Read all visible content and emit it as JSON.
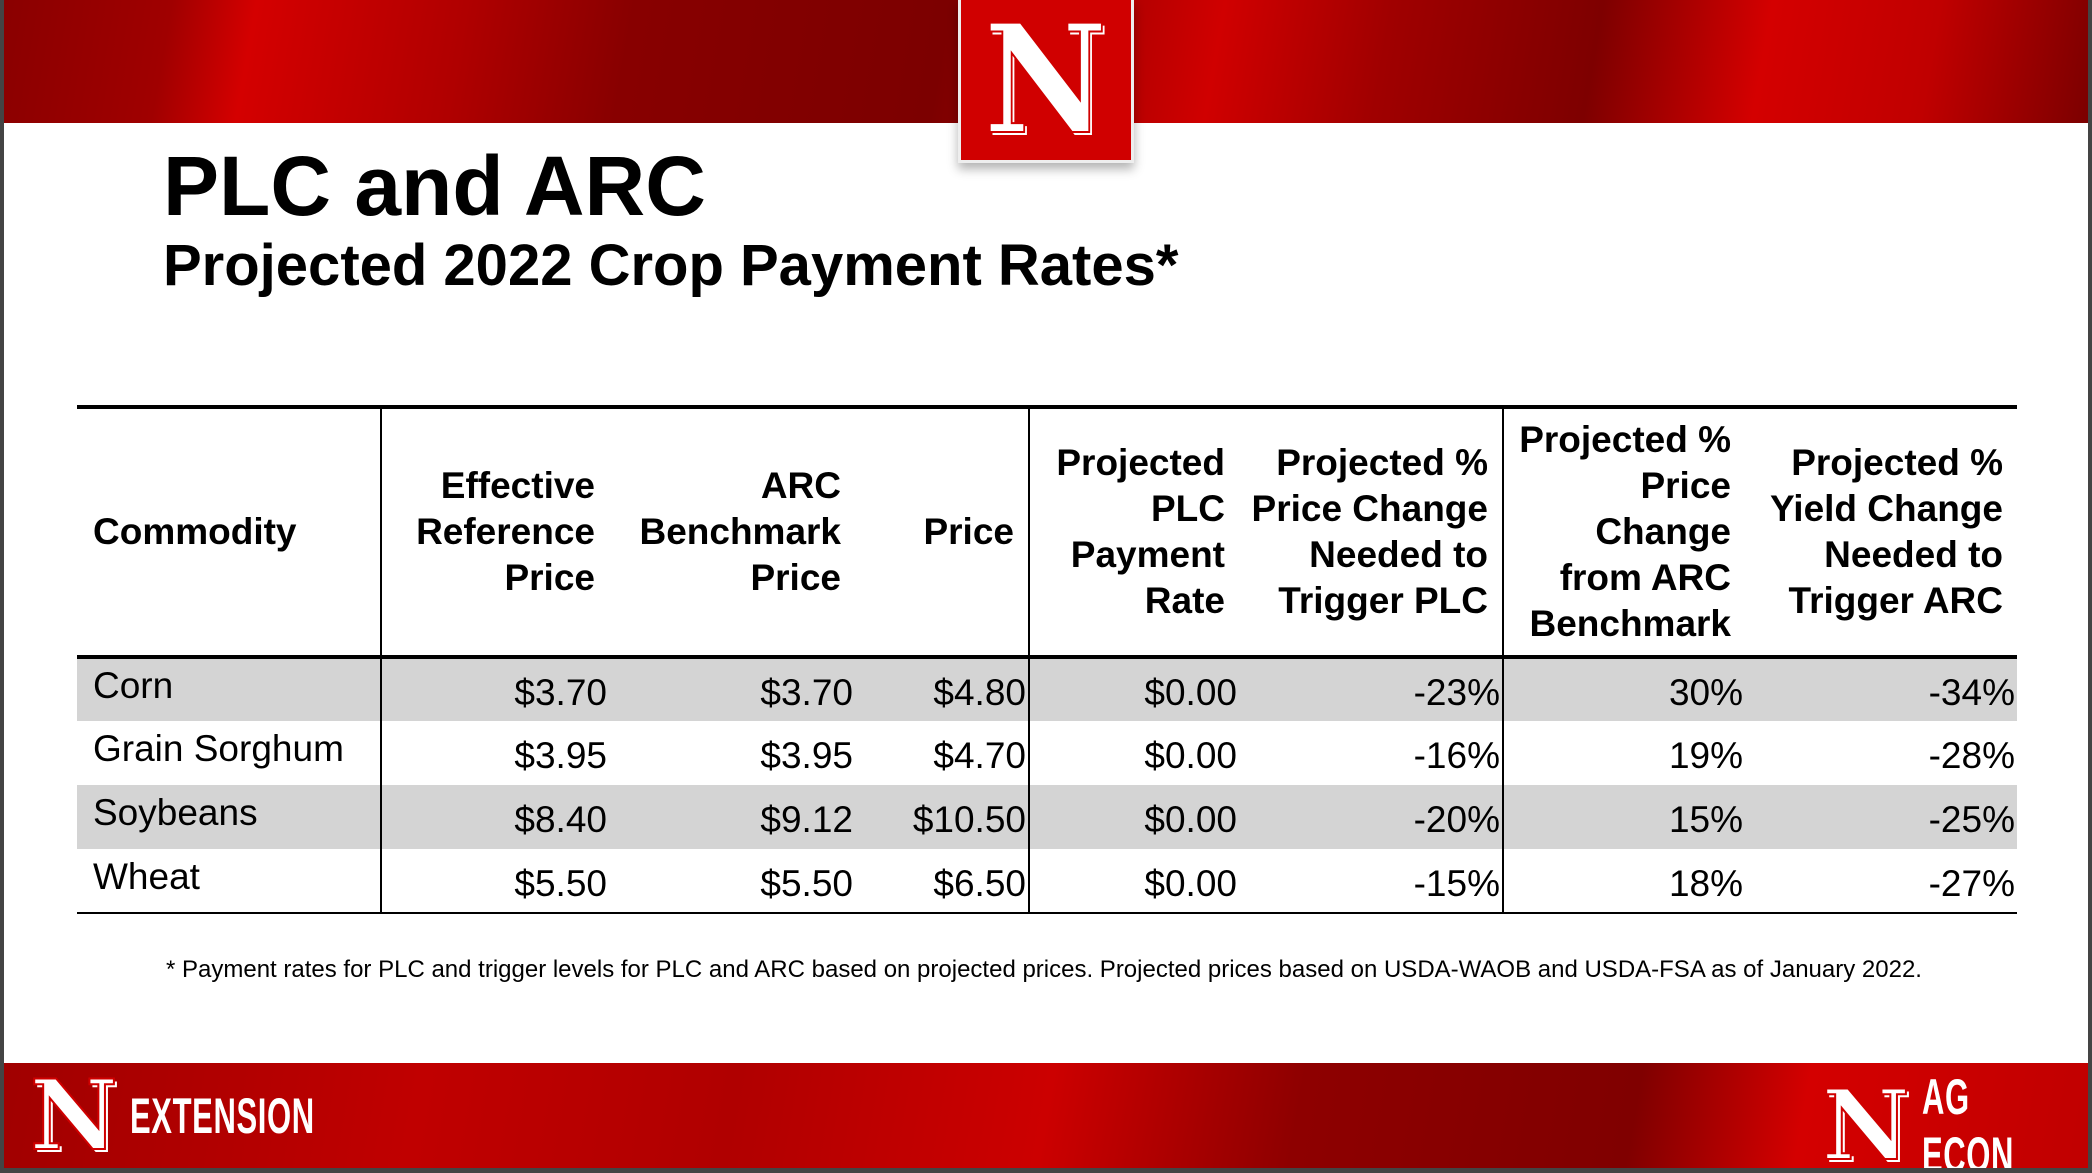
{
  "title": "PLC and ARC",
  "subtitle": "Projected 2022 Crop Payment Rates*",
  "logo": "N",
  "table": {
    "headers": [
      "Commodity",
      "Effective Reference Price",
      "ARC Benchmark Price",
      "Price",
      "Projected PLC Payment Rate",
      "Projected % Price Change Needed to Trigger PLC",
      "Projected % Price Change from ARC Benchmark",
      "Projected % Yield Change Needed to Trigger ARC"
    ],
    "rows": [
      [
        "Corn",
        "$3.70",
        "$3.70",
        "$4.80",
        "$0.00",
        "-23%",
        "30%",
        "-34%"
      ],
      [
        "Grain Sorghum",
        "$3.95",
        "$3.95",
        "$4.70",
        "$0.00",
        "-16%",
        "19%",
        "-28%"
      ],
      [
        "Soybeans",
        "$8.40",
        "$9.12",
        "$10.50",
        "$0.00",
        "-20%",
        "15%",
        "-25%"
      ],
      [
        "Wheat",
        "$5.50",
        "$5.50",
        "$6.50",
        "$0.00",
        "-15%",
        "18%",
        "-27%"
      ]
    ]
  },
  "footnote": "* Payment rates for PLC and trigger levels for PLC and ARC based on projected prices. Projected prices based on USDA-WAOB and USDA-FSA as of January 2022.",
  "footer": {
    "left": "EXTENSION",
    "right": "AG ECON"
  }
}
